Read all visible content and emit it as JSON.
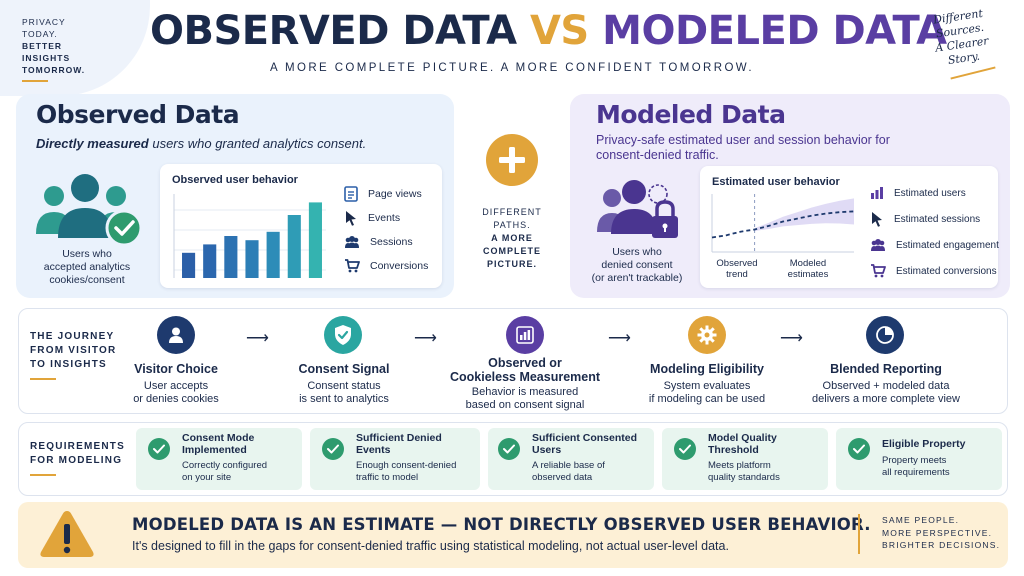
{
  "header": {
    "tagline_left": [
      "PRIVACY",
      "TODAY.",
      "BETTER",
      "INSIGHTS",
      "TOMORROW."
    ],
    "title_part1": "OBSERVED DATA",
    "title_vs": "VS",
    "title_part2": "MODELED DATA",
    "subtitle": "A MORE COMPLETE PICTURE. A MORE CONFIDENT TOMORROW.",
    "tagline_right": [
      "Different",
      "Sources.",
      "A Clearer",
      "Story."
    ]
  },
  "observed": {
    "title": "Observed Data",
    "subtitle_bold": "Directly measured",
    "subtitle_rest": " users who granted analytics consent.",
    "people_caption": [
      "Users who",
      "accepted analytics",
      "cookies/consent"
    ],
    "chart_title": "Observed user behavior",
    "legend": [
      {
        "icon": "page-icon",
        "label": "Page views"
      },
      {
        "icon": "cursor-icon",
        "label": "Events"
      },
      {
        "icon": "users-icon",
        "label": "Sessions"
      },
      {
        "icon": "cart-icon",
        "label": "Conversions"
      }
    ]
  },
  "center": {
    "line1": "DIFFERENT",
    "line2": "PATHS.",
    "line3": "A MORE",
    "line4": "COMPLETE",
    "line5": "PICTURE."
  },
  "modeled": {
    "title": "Modeled Data",
    "subtitle": "Privacy-safe estimated user and session behavior for consent-denied traffic.",
    "people_caption": [
      "Users who",
      "denied consent",
      "(or aren't trackable)"
    ],
    "chart_title": "Estimated user behavior",
    "label_observed": [
      "Observed",
      "trend"
    ],
    "label_modeled": [
      "Modeled",
      "estimates"
    ],
    "legend": [
      {
        "icon": "bar-chart-icon",
        "label": "Estimated users"
      },
      {
        "icon": "cursor-icon",
        "label": "Estimated sessions"
      },
      {
        "icon": "users-icon",
        "label": "Estimated engagement"
      },
      {
        "icon": "cart-icon",
        "label": "Estimated conversions"
      }
    ]
  },
  "journey": {
    "label": [
      "THE JOURNEY",
      "FROM VISITOR",
      "TO INSIGHTS"
    ],
    "steps": [
      {
        "title": "Visitor Choice",
        "desc": [
          "User accepts",
          "or denies cookies"
        ],
        "color": "#1e3a6e"
      },
      {
        "title": "Consent Signal",
        "desc": [
          "Consent status",
          "is sent to analytics"
        ],
        "color": "#2aa6a1"
      },
      {
        "title": "Observed or Cookieless Measurement",
        "title_lines": [
          "Observed or",
          "Cookieless Measurement"
        ],
        "desc": [
          "Behavior is measured",
          "based on consent signal"
        ],
        "color": "#5a3ea3"
      },
      {
        "title": "Modeling Eligibility",
        "desc": [
          "System evaluates",
          "if modeling can be used"
        ],
        "color": "#e1a43a"
      },
      {
        "title": "Blended Reporting",
        "desc": [
          "Observed + modeled data",
          "delivers a more complete view"
        ],
        "color": "#1e3a6e"
      }
    ]
  },
  "requirements": {
    "label": [
      "REQUIREMENTS",
      "FOR MODELING"
    ],
    "items": [
      {
        "title": [
          "Consent Mode",
          "Implemented"
        ],
        "desc": [
          "Correctly configured",
          "on your site"
        ]
      },
      {
        "title": [
          "Sufficient Denied",
          "Events"
        ],
        "desc": [
          "Enough consent-denied",
          "traffic to model"
        ]
      },
      {
        "title": [
          "Sufficient Consented",
          "Users"
        ],
        "desc": [
          "A reliable base of",
          "observed data"
        ]
      },
      {
        "title": [
          "Model Quality",
          "Threshold"
        ],
        "desc": [
          "Meets platform",
          "quality standards"
        ]
      },
      {
        "title": [
          "Eligible Property"
        ],
        "desc": [
          "Property meets",
          "all requirements"
        ]
      }
    ]
  },
  "bottom": {
    "headline": "MODELED DATA IS AN ESTIMATE — NOT DIRECTLY OBSERVED USER BEHAVIOR.",
    "text": "It's designed to fill in the gaps for consent-denied traffic using statistical modeling, not actual user-level data.",
    "right": [
      "SAME PEOPLE.",
      "MORE PERSPECTIVE.",
      "BRIGHTER DECISIONS."
    ]
  },
  "chart_data": [
    {
      "type": "bar",
      "title": "Observed user behavior",
      "values": [
        3,
        4,
        5,
        4.5,
        5.5,
        7.5,
        9
      ],
      "ylim": [
        0,
        10
      ]
    },
    {
      "type": "line",
      "title": "Estimated user behavior",
      "x": [
        0,
        1,
        2,
        3,
        4,
        5,
        6,
        7,
        8,
        9,
        10
      ],
      "values": [
        2,
        2.3,
        2.8,
        3.1,
        3.6,
        4.2,
        4.6,
        5,
        5.3,
        5.5,
        5.6
      ],
      "observed_until": 3,
      "ylim": [
        0,
        8
      ]
    }
  ],
  "colors": {
    "navy": "#1b2a4a",
    "gold": "#e1a43a",
    "purple": "#5a3ea3",
    "teal": "#2aa6a1",
    "green": "#2e9b6e"
  }
}
